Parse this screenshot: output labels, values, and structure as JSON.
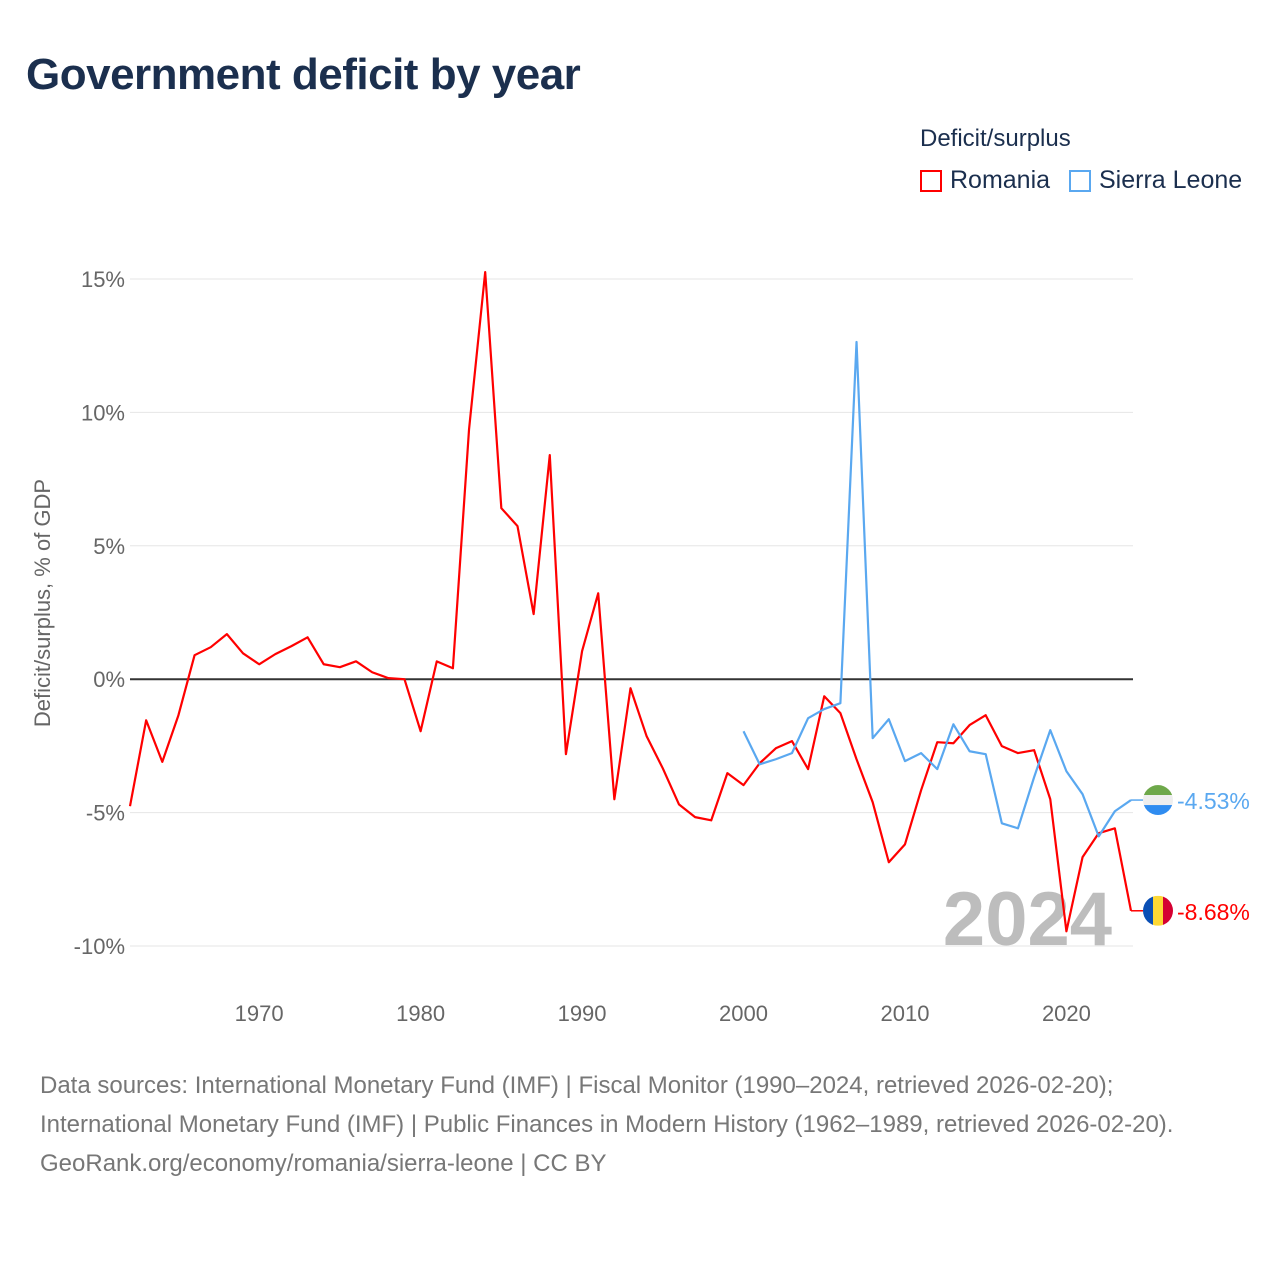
{
  "title": "Government deficit by year",
  "legend": {
    "title": "Deficit/surplus",
    "items": [
      "Romania",
      "Sierra Leone"
    ]
  },
  "footer": {
    "line1": "Data sources: International Monetary Fund (IMF) | Fiscal Monitor (1990–2024, retrieved 2026-02-20);",
    "line2": "International Monetary Fund (IMF) | Public Finances in Modern History (1962–1989, retrieved 2026-02-20).",
    "line3": "GeoRank.org/economy/romania/sierra-leone | CC BY"
  },
  "chart_data": {
    "type": "line",
    "title": "Government deficit by year",
    "ylabel": "Deficit/surplus, % of GDP",
    "xlabel": "",
    "ylim": [
      -10,
      15
    ],
    "xlim": [
      1962,
      2024
    ],
    "yticks": [
      15,
      10,
      5,
      0,
      -5,
      -10
    ],
    "ytick_labels": [
      "15%",
      "10%",
      "5%",
      "0%",
      "-5%",
      "-10%"
    ],
    "xticks": [
      1970,
      1980,
      1990,
      2000,
      2010,
      2020
    ],
    "xtick_labels": [
      "1970",
      "1980",
      "1990",
      "2000",
      "2010",
      "2020"
    ],
    "year_label": "2024",
    "grid": true,
    "legend_position": "top-right",
    "series": [
      {
        "name": "Romania",
        "color": "#ff0000",
        "end_label": "-8.68%",
        "flag": "romania-flag",
        "x": [
          1962,
          1963,
          1964,
          1965,
          1966,
          1967,
          1968,
          1969,
          1970,
          1971,
          1972,
          1973,
          1974,
          1975,
          1976,
          1977,
          1978,
          1979,
          1980,
          1981,
          1982,
          1983,
          1984,
          1985,
          1986,
          1987,
          1988,
          1989,
          1990,
          1991,
          1992,
          1993,
          1994,
          1995,
          1996,
          1997,
          1998,
          1999,
          2000,
          2001,
          2002,
          2003,
          2004,
          2005,
          2006,
          2007,
          2008,
          2009,
          2010,
          2011,
          2012,
          2013,
          2014,
          2015,
          2016,
          2017,
          2018,
          2019,
          2020,
          2021,
          2022,
          2023,
          2024
        ],
        "values": [
          -4.76,
          -1.54,
          -3.1,
          -1.35,
          0.9,
          1.2,
          1.69,
          0.97,
          0.56,
          0.94,
          1.24,
          1.57,
          0.56,
          0.45,
          0.67,
          0.26,
          0.04,
          0,
          -1.95,
          0.67,
          0.41,
          9.37,
          15.26,
          6.41,
          5.74,
          2.44,
          8.4,
          -2.81,
          1.05,
          3.22,
          -4.5,
          -0.34,
          -2.14,
          -3.34,
          -4.69,
          -5.17,
          -5.29,
          -3.52,
          -3.97,
          -3.15,
          -2.59,
          -2.32,
          -3.37,
          -0.64,
          -1.27,
          -3.0,
          -4.61,
          -6.86,
          -6.19,
          -4.16,
          -2.36,
          -2.4,
          -1.72,
          -1.35,
          -2.51,
          -2.77,
          -2.66,
          -4.5,
          -9.45,
          -6.67,
          -5.77,
          -5.59,
          -8.68
        ]
      },
      {
        "name": "Sierra Leone",
        "color": "#5aa8f0",
        "end_label": "-4.53%",
        "flag": "sierra-leone-flag",
        "x": [
          2000,
          2001,
          2002,
          2003,
          2004,
          2005,
          2006,
          2007,
          2008,
          2009,
          2010,
          2011,
          2012,
          2013,
          2014,
          2015,
          2016,
          2017,
          2018,
          2019,
          2020,
          2021,
          2022,
          2023,
          2024
        ],
        "values": [
          -1.95,
          -3.19,
          -3.0,
          -2.77,
          -1.46,
          -1.12,
          -0.9,
          12.64,
          -2.21,
          -1.5,
          -3.07,
          -2.77,
          -3.37,
          -1.69,
          -2.7,
          -2.81,
          -5.4,
          -5.59,
          -3.67,
          -1.91,
          -3.45,
          -4.31,
          -5.89,
          -4.95,
          -4.53
        ]
      }
    ]
  }
}
